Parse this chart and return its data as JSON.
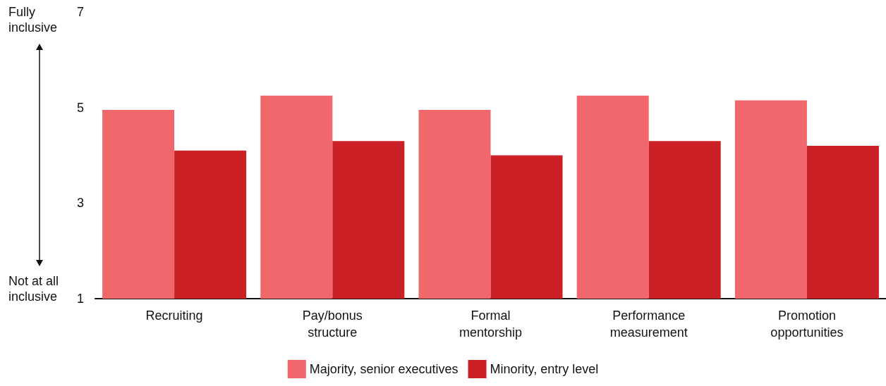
{
  "chart_data": {
    "type": "bar",
    "categories": [
      "Recruiting",
      "Pay/bonus\nstructure",
      "Formal\nmentorship",
      "Performance\nmeasurement",
      "Promotion\nopportunities"
    ],
    "series": [
      {
        "name": "Majority, senior executives",
        "color": "#f0686b",
        "values": [
          4.95,
          5.25,
          4.95,
          5.25,
          5.15
        ]
      },
      {
        "name": "Minority, entry level",
        "color": "#cc2027",
        "values": [
          4.1,
          4.3,
          4.0,
          4.3,
          4.2
        ]
      }
    ],
    "ylim": [
      1,
      7
    ],
    "yticks": [
      1,
      3,
      5,
      7
    ],
    "grid": false,
    "legend": "bottom",
    "annotations": [
      "Fully\ninclusive",
      "Not at all\ninclusive"
    ]
  }
}
